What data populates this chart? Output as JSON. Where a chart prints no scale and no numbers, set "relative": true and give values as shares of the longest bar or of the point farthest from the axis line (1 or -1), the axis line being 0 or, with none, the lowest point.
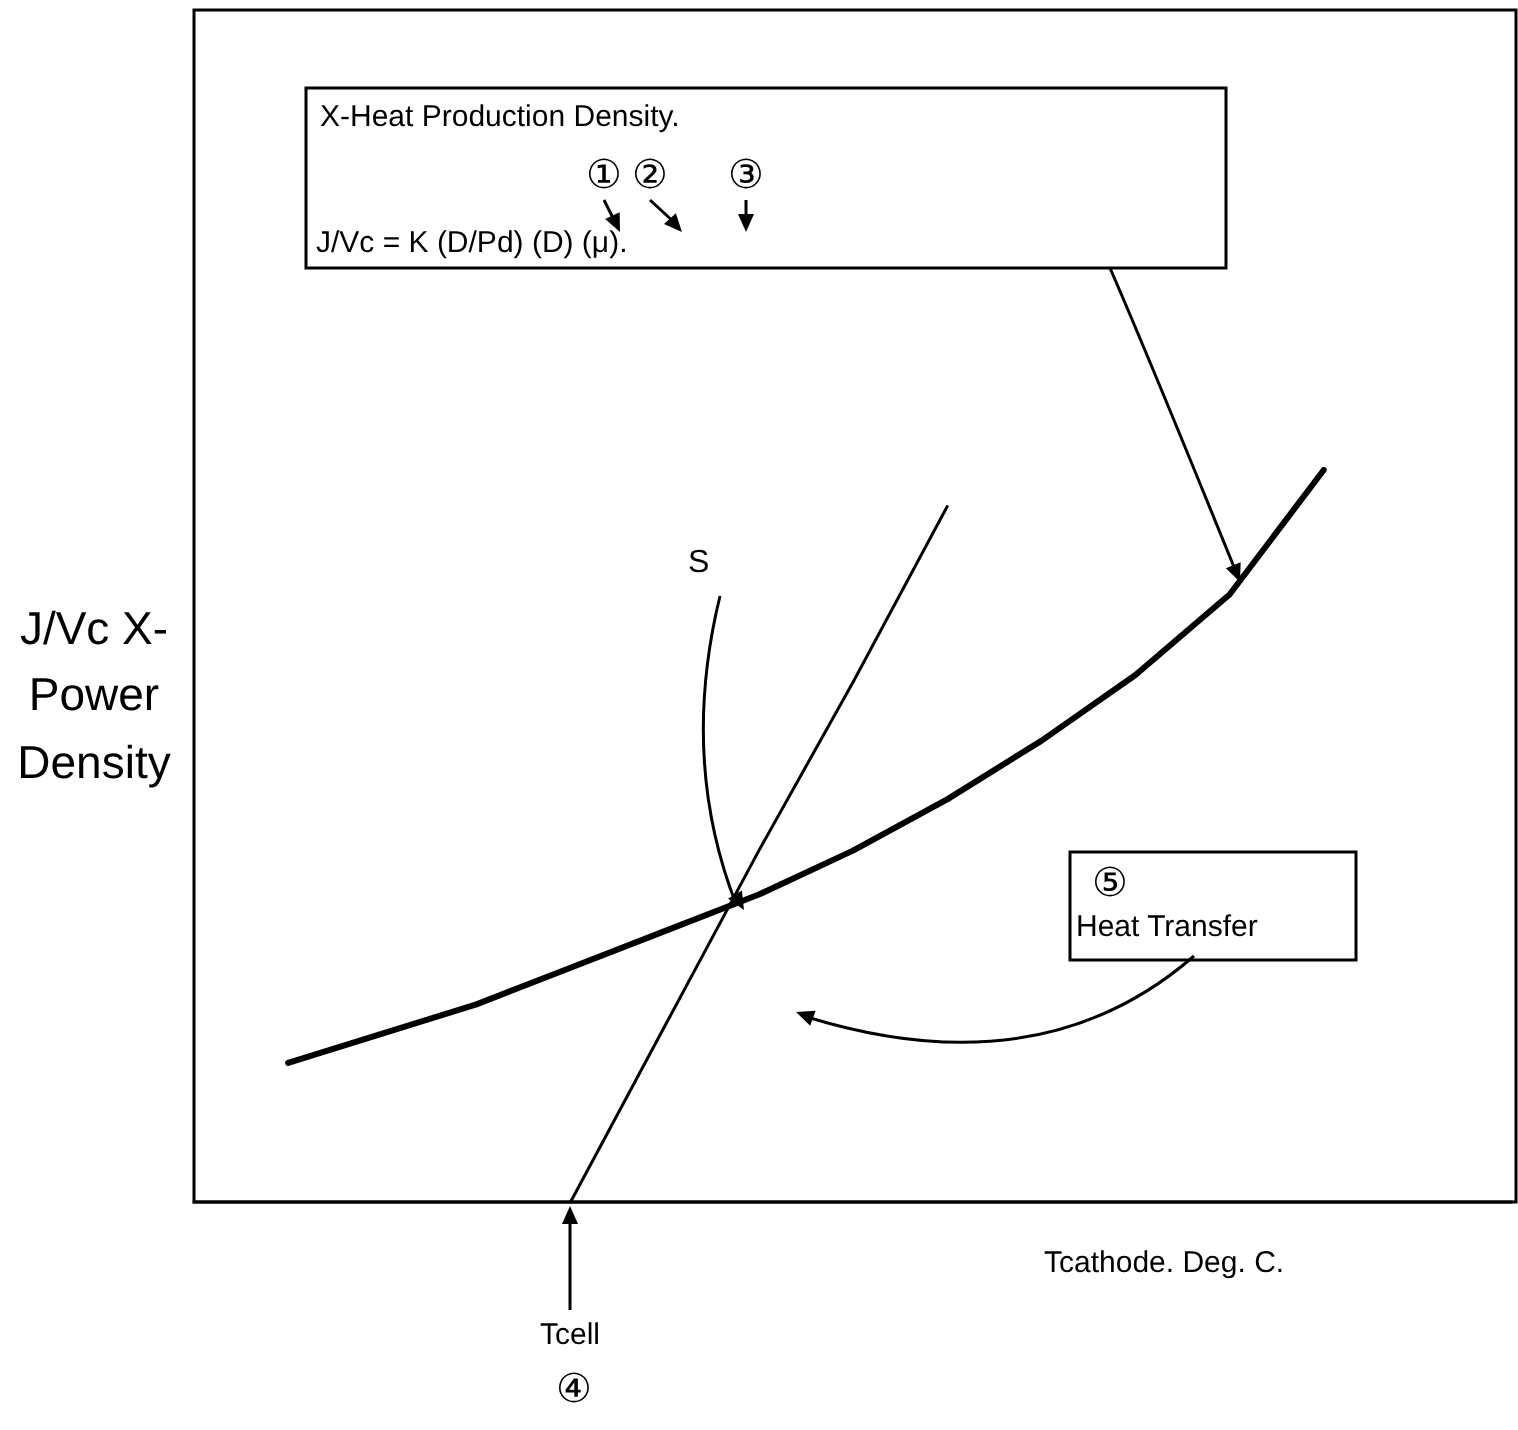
{
  "chart_data": {
    "type": "line",
    "relative": true,
    "xlabel": "Tcathode. Deg. C.",
    "ylabel": "J/Vc X-Power Density",
    "categories": [
      null,
      null,
      null,
      null,
      null,
      null,
      null,
      null,
      null,
      null,
      null,
      null,
      null,
      null,
      null
    ],
    "series": [
      {
        "color": "#000000",
        "values": [
          null,
          0.19,
          0.23,
          0.27,
          0.32,
          0.37,
          0.42,
          0.48,
          0.55,
          0.63,
          0.72,
          0.83,
          1.0,
          null,
          null
        ]
      },
      {
        "color": "#000000",
        "values": [
          null,
          null,
          null,
          null,
          0,
          0.24,
          0.48,
          0.71,
          0.95,
          null,
          null,
          null,
          null,
          null,
          null
        ]
      }
    ],
    "marker": "none",
    "line_style": "solid",
    "grid": false,
    "annotations": [
      "X-Heat Production Density.",
      "①",
      "②",
      "③",
      "J/Vc = K (D/Pd) (D) (μ).",
      "S",
      "⑤",
      "Heat Transfer",
      "Tcell",
      "④"
    ]
  }
}
